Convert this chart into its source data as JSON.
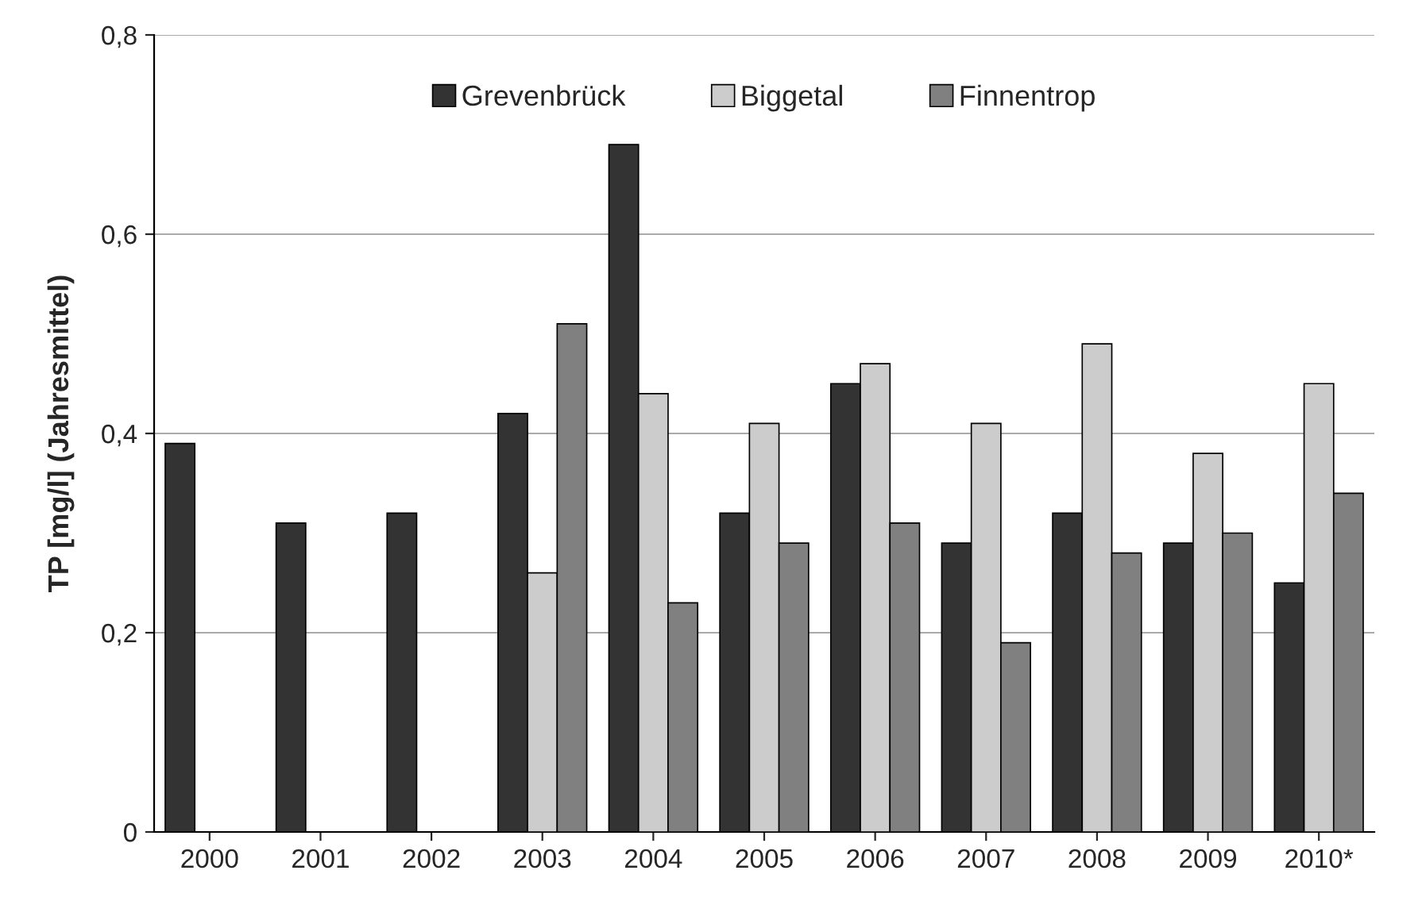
{
  "chart_data": {
    "type": "bar",
    "ylabel": "TP [mg/l] (Jahresmittel)",
    "categories": [
      "2000",
      "2001",
      "2002",
      "2003",
      "2004",
      "2005",
      "2006",
      "2007",
      "2008",
      "2009",
      "2010*"
    ],
    "series": [
      {
        "name": "Grevenbrück",
        "color": "#333333",
        "values": [
          0.39,
          0.31,
          0.32,
          0.42,
          0.69,
          0.32,
          0.45,
          0.29,
          0.32,
          0.29,
          0.25
        ]
      },
      {
        "name": "Biggetal",
        "color": "#cccccc",
        "values": [
          null,
          null,
          null,
          0.26,
          0.44,
          0.41,
          0.47,
          0.41,
          0.49,
          0.38,
          0.45
        ]
      },
      {
        "name": "Finnentrop",
        "color": "#808080",
        "values": [
          null,
          null,
          null,
          0.51,
          0.23,
          0.29,
          0.31,
          0.19,
          0.28,
          0.3,
          0.34
        ]
      }
    ],
    "ylim": [
      0,
      0.8
    ],
    "yticks": [
      {
        "value": 0,
        "label": "0"
      },
      {
        "value": 0.2,
        "label": "0,2"
      },
      {
        "value": 0.4,
        "label": "0,4"
      },
      {
        "value": 0.6,
        "label": "0,6"
      },
      {
        "value": 0.8,
        "label": "0,8"
      }
    ],
    "grid": "y",
    "legend": "top"
  }
}
